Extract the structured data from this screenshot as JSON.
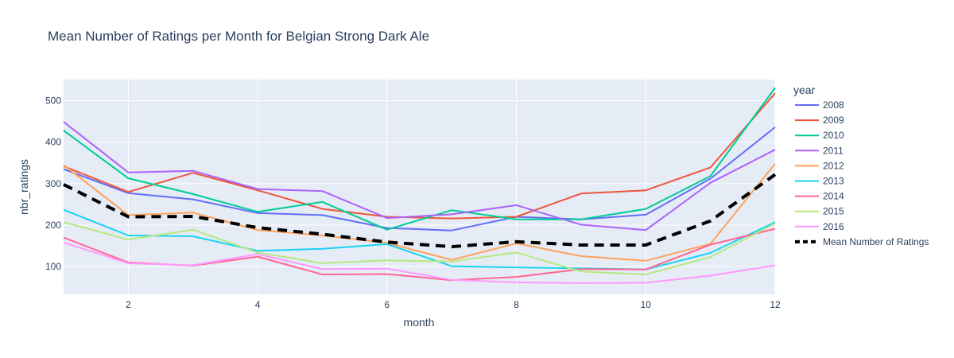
{
  "chart_data": {
    "type": "line",
    "title": "Mean Number of Ratings per Month for Belgian Strong Dark Ale",
    "xlabel": "month",
    "ylabel": "nbr_ratings",
    "x": [
      1,
      2,
      3,
      4,
      5,
      6,
      7,
      8,
      9,
      10,
      11,
      12
    ],
    "xlim": [
      1,
      12
    ],
    "ylim": [
      33,
      551
    ],
    "xticks": [
      2,
      4,
      6,
      8,
      10,
      12
    ],
    "yticks": [
      100,
      200,
      300,
      400,
      500
    ],
    "grid": true,
    "legend": {
      "title": "year",
      "placement": "right"
    },
    "series": [
      {
        "name": "2008",
        "color": "#636efa",
        "dash": "solid",
        "values": [
          335,
          277,
          262,
          229,
          224,
          193,
          187,
          220,
          214,
          225,
          312,
          436
        ]
      },
      {
        "name": "2009",
        "color": "#EF553B",
        "dash": "solid",
        "values": [
          342,
          280,
          326,
          284,
          239,
          220,
          216,
          220,
          276,
          284,
          339,
          518
        ]
      },
      {
        "name": "2010",
        "color": "#00cc96",
        "dash": "solid",
        "values": [
          428,
          313,
          275,
          232,
          256,
          189,
          236,
          214,
          214,
          239,
          318,
          531
        ]
      },
      {
        "name": "2011",
        "color": "#ab63fa",
        "dash": "solid",
        "values": [
          449,
          327,
          331,
          287,
          282,
          217,
          226,
          248,
          201,
          188,
          302,
          382
        ]
      },
      {
        "name": "2012",
        "color": "#FFA15A",
        "dash": "solid",
        "values": [
          345,
          224,
          230,
          188,
          175,
          157,
          116,
          156,
          125,
          114,
          155,
          348
        ]
      },
      {
        "name": "2013",
        "color": "#19d3f3",
        "dash": "solid",
        "values": [
          237,
          175,
          173,
          138,
          143,
          154,
          101,
          98,
          96,
          93,
          133,
          207
        ]
      },
      {
        "name": "2014",
        "color": "#FF6692",
        "dash": "solid",
        "values": [
          170,
          110,
          102,
          124,
          81,
          82,
          67,
          75,
          94,
          93,
          153,
          191
        ]
      },
      {
        "name": "2015",
        "color": "#B6E880",
        "dash": "solid",
        "values": [
          207,
          165,
          189,
          134,
          108,
          115,
          112,
          134,
          88,
          81,
          123,
          204
        ]
      },
      {
        "name": "2016",
        "color": "#FF97FF",
        "dash": "solid",
        "values": [
          158,
          108,
          103,
          130,
          94,
          95,
          68,
          62,
          60,
          61,
          78,
          103
        ]
      },
      {
        "name": "Mean Number of Ratings",
        "color": "#000000",
        "dash": "dash",
        "values": [
          298,
          220,
          221,
          194,
          178,
          159,
          148,
          160,
          152,
          152,
          210,
          322
        ]
      }
    ]
  }
}
